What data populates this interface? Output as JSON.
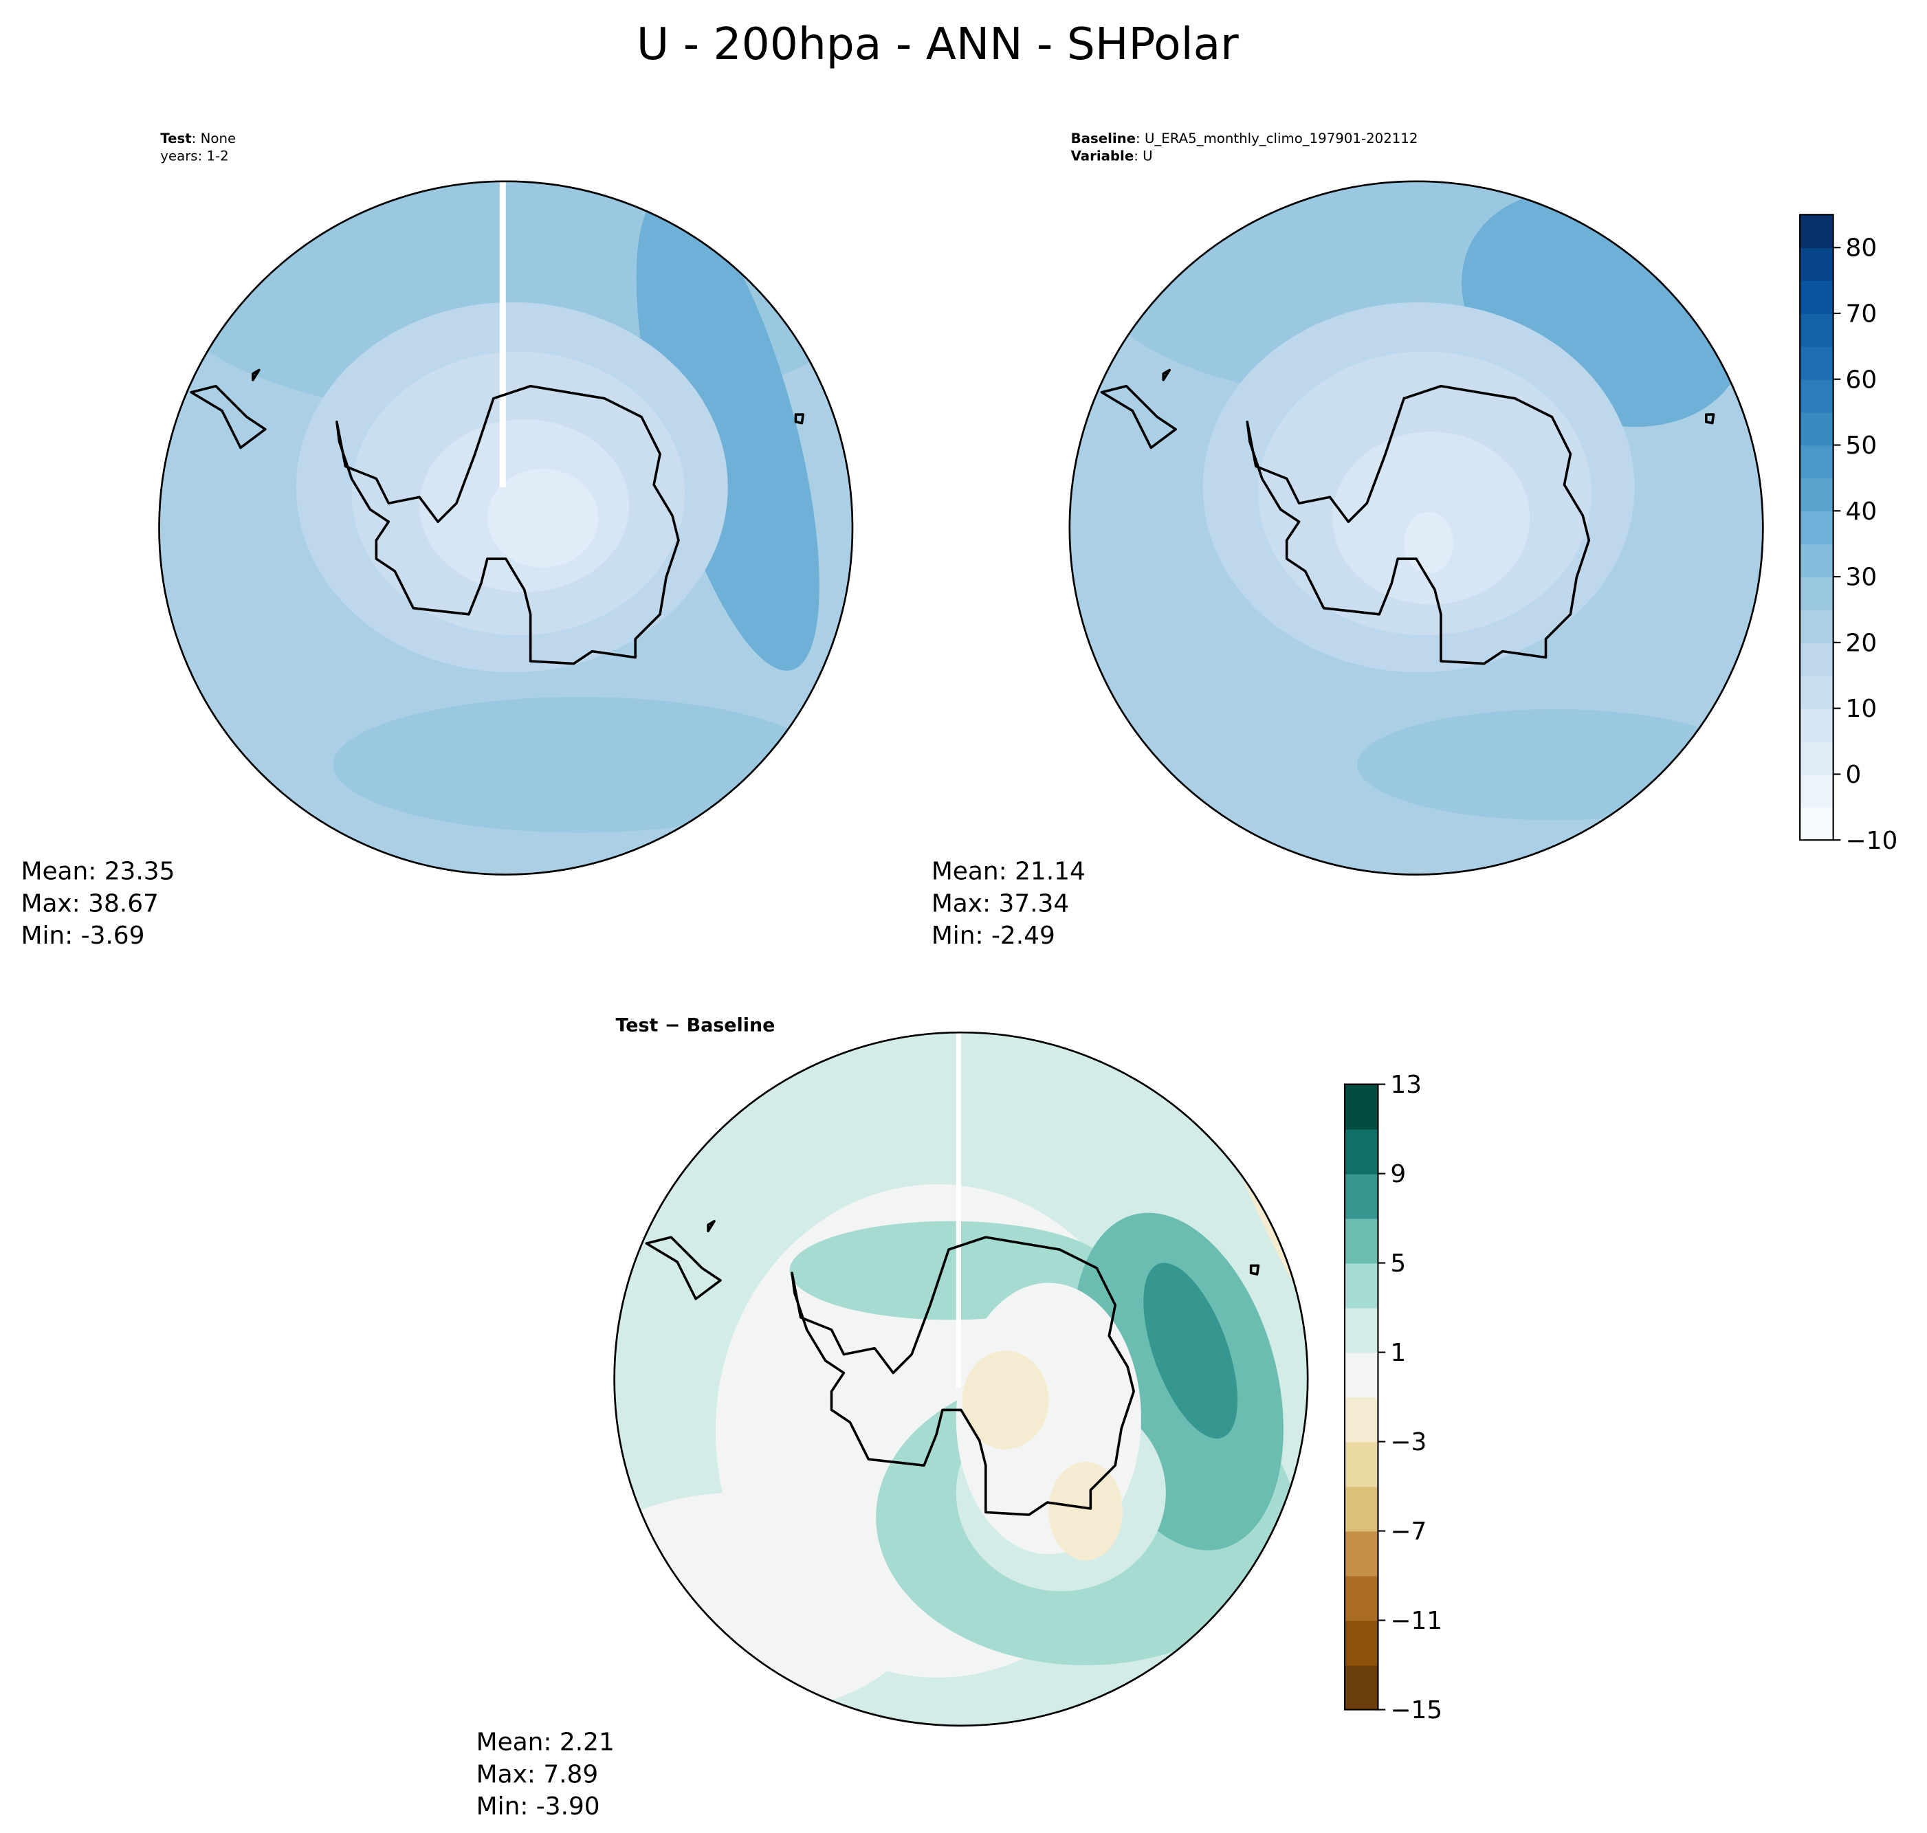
{
  "title": "U - 200hpa - ANN - SHPolar",
  "panels": [
    {
      "header": [
        {
          "bold": "Test",
          "text": ": None"
        },
        {
          "text": "years: 1-2"
        }
      ],
      "stats": [
        "Mean: 23.35",
        "Max: 38.67",
        "Min: -3.69"
      ]
    },
    {
      "header": [
        {
          "bold": "Baseline",
          "text": ": U_ERA5_monthly_climo_197901-202112"
        },
        {
          "bold": "Variable",
          "text": ": U"
        }
      ],
      "stats": [
        "Mean: 21.14",
        "Max: 37.34",
        "Min: -2.49"
      ]
    },
    {
      "header": [
        {
          "bold": "Test − Baseline"
        }
      ],
      "stats": [
        "Mean:  2.21",
        "Max:  7.89",
        "Min: -3.90"
      ]
    }
  ],
  "colorbars": [
    {
      "lim": [
        -10,
        85
      ],
      "ticks": [
        {
          "value": -10,
          "label": "−10"
        },
        0,
        10,
        20,
        30,
        40,
        50,
        60,
        70,
        80
      ],
      "colors": [
        "#f7fbff",
        "#ebf3fb",
        "#e0ecf8",
        "#d6e6f4",
        "#cadef0",
        "#bdd7ec",
        "#abd0e6",
        "#9ac8e0",
        "#85bcdc",
        "#6fb0d7",
        "#5ca4d0",
        "#4a98c9",
        "#3a8ac2",
        "#2c7cba",
        "#1f6eb3",
        "#1461a8",
        "#0a539e",
        "#08458a",
        "#08306b"
      ]
    },
    {
      "lim": [
        -15,
        13
      ],
      "ticks": [
        {
          "value": -15,
          "label": "−15"
        },
        {
          "value": -11,
          "label": "−11"
        },
        {
          "value": -7,
          "label": "−7"
        },
        {
          "value": -3,
          "label": "−3"
        },
        1,
        5,
        9,
        13
      ],
      "colors": [
        "#6a3d0a",
        "#8c520c",
        "#aa6c21",
        "#c48f47",
        "#dcc078",
        "#ebd9a3",
        "#f5ebd0",
        "#f3f5f4",
        "#d3ece8",
        "#a5dbd0",
        "#6cbdb1",
        "#35978f",
        "#0e7068",
        "#024b3f"
      ]
    }
  ]
}
